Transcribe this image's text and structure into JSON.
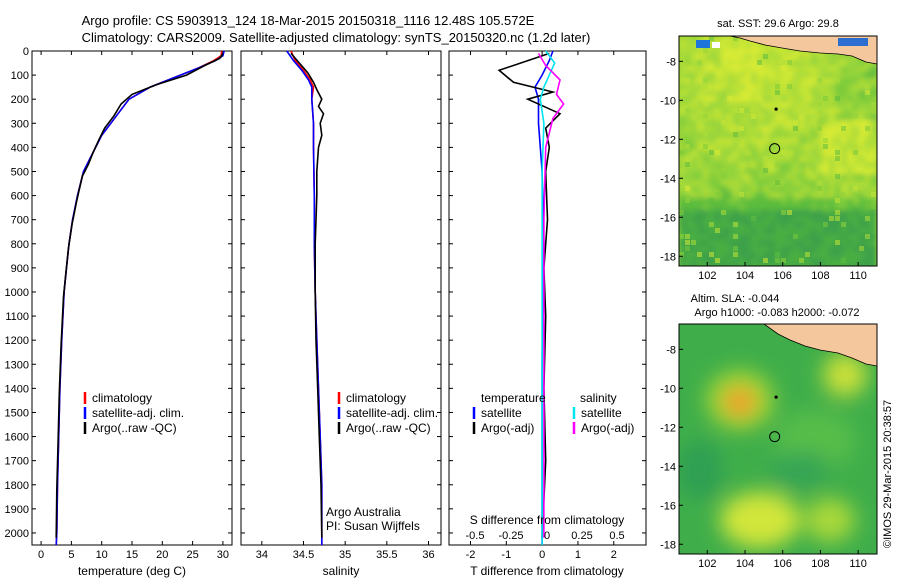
{
  "header": {
    "line1": "Argo profile: CS 5903913_124 18-Mar-2015 20150318_1116 12.48S 105.572E",
    "line2": "Climatology: CARS2009. Satellite-adjusted climatology: synTS_20150320.nc (1.2d later)"
  },
  "watermark": "©IMOS 29-Mar-2015 20:38:57",
  "colors": {
    "climatology": "#ff0000",
    "satellite_clim": "#0000ff",
    "argo": "#000000",
    "salinity_satellite": "#00e5ee",
    "salinity_argo": "#ff00ff",
    "land": "#f5c79c",
    "coast": "#000000"
  },
  "chart_data": [
    {
      "type": "line",
      "id": "temperature",
      "xlabel": "temperature (deg C)",
      "ylabel": "",
      "xlim": [
        -1.5,
        31.5
      ],
      "ylim": [
        2050,
        0
      ],
      "xticks": [
        0,
        5,
        10,
        15,
        20,
        25,
        30
      ],
      "xticklabels": [
        "0",
        "5",
        "10",
        "15",
        "20",
        "25",
        "30"
      ],
      "yticks": [
        0,
        100,
        200,
        300,
        400,
        500,
        600,
        700,
        800,
        900,
        1000,
        1100,
        1200,
        1300,
        1400,
        1500,
        1600,
        1700,
        1800,
        1900,
        2000
      ],
      "yticklabels": [
        "0",
        "100",
        "200",
        "300",
        "400",
        "500",
        "600",
        "700",
        "800",
        "900",
        "1000",
        "1100",
        "1200",
        "1300",
        "1400",
        "1500",
        "1600",
        "1700",
        "1800",
        "1900",
        "2000"
      ],
      "legend": [
        "climatology",
        "satellite-adj. clim.",
        "Argo(..raw -QC)"
      ],
      "series": [
        {
          "name": "climatology",
          "color": "#ff0000",
          "x": [
            29.8,
            29.7,
            28.5,
            26,
            22,
            18,
            14.5,
            13,
            11.5,
            10,
            9,
            8,
            7,
            6,
            5.2,
            4.6,
            4.2,
            3.8,
            3.4,
            3.1,
            2.9,
            2.7,
            2.6,
            2.5
          ],
          "y": [
            0,
            20,
            40,
            70,
            110,
            150,
            200,
            250,
            300,
            350,
            400,
            450,
            500,
            600,
            700,
            800,
            900,
            1000,
            1200,
            1400,
            1600,
            1800,
            2000,
            2050
          ]
        },
        {
          "name": "satellite-adj. clim.",
          "color": "#0000ff",
          "x": [
            30.2,
            30,
            28.8,
            26,
            22,
            18,
            14.5,
            13,
            11.5,
            10,
            9,
            8,
            7,
            6,
            5.2,
            4.6,
            4.2,
            3.8,
            3.4,
            3.1,
            2.9,
            2.7,
            2.6,
            2.5
          ],
          "y": [
            0,
            20,
            40,
            70,
            110,
            150,
            200,
            250,
            300,
            350,
            400,
            450,
            500,
            600,
            700,
            800,
            900,
            1000,
            1200,
            1400,
            1600,
            1800,
            2000,
            2050
          ]
        },
        {
          "name": "Argo(..raw -QC)",
          "color": "#000000",
          "x": [
            30,
            29.5,
            27,
            24,
            19,
            15,
            13.2,
            12,
            10.5,
            9.5,
            8.6,
            7.8,
            6.8,
            5.9,
            5.1,
            4.5,
            4.1,
            3.7,
            3.3,
            3,
            2.8,
            2.6,
            2.5
          ],
          "y": [
            10,
            30,
            60,
            100,
            140,
            180,
            220,
            270,
            320,
            370,
            420,
            470,
            520,
            620,
            720,
            820,
            920,
            1020,
            1220,
            1420,
            1620,
            1820,
            2020
          ]
        }
      ]
    },
    {
      "type": "line",
      "id": "salinity",
      "xlabel": "salinity",
      "ylabel": "",
      "xlim": [
        33.75,
        36.15
      ],
      "ylim": [
        2050,
        0
      ],
      "xticks": [
        34,
        34.5,
        35,
        35.5,
        36
      ],
      "xticklabels": [
        "34",
        "34.5",
        "35",
        "35.5",
        "36"
      ],
      "legend": [
        "climatology",
        "satellite-adj. clim.",
        "Argo(..raw -QC)"
      ],
      "annotations": [
        "Argo Australia",
        "PI: Susan Wijffels"
      ],
      "series": [
        {
          "name": "climatology",
          "color": "#ff0000",
          "x": [
            34.35,
            34.4,
            34.5,
            34.58,
            34.62,
            34.6,
            34.62,
            34.62,
            34.63,
            34.63,
            34.64,
            34.66,
            34.68,
            34.7,
            34.72,
            34.72
          ],
          "y": [
            0,
            40,
            80,
            120,
            150,
            200,
            300,
            400,
            600,
            800,
            1000,
            1200,
            1400,
            1600,
            1800,
            2050
          ]
        },
        {
          "name": "satellite-adj. clim.",
          "color": "#0000ff",
          "x": [
            34.3,
            34.38,
            34.48,
            34.56,
            34.6,
            34.6,
            34.62,
            34.62,
            34.63,
            34.63,
            34.64,
            34.66,
            34.68,
            34.7,
            34.72,
            34.72
          ],
          "y": [
            0,
            40,
            80,
            120,
            150,
            200,
            300,
            400,
            600,
            800,
            1000,
            1200,
            1400,
            1600,
            1800,
            2050
          ]
        },
        {
          "name": "Argo(..raw -QC)",
          "color": "#000000",
          "x": [
            34.35,
            34.45,
            34.55,
            34.62,
            34.66,
            34.72,
            34.68,
            34.74,
            34.7,
            34.72,
            34.68,
            34.66,
            34.66,
            34.64,
            34.64,
            34.65,
            34.67,
            34.69,
            34.71,
            34.72
          ],
          "y": [
            10,
            50,
            90,
            130,
            160,
            200,
            230,
            260,
            300,
            350,
            400,
            500,
            600,
            800,
            1000,
            1200,
            1400,
            1600,
            1800,
            2020
          ]
        }
      ]
    },
    {
      "type": "line",
      "id": "difference",
      "xlabel": "T difference from climatology",
      "ylabel": "",
      "title_bottom": "S difference from climatology",
      "xlim": [
        -2.6,
        2.9
      ],
      "ylim": [
        2050,
        0
      ],
      "xticks": [
        -2,
        -1,
        0,
        1,
        2
      ],
      "xticklabels": [
        "-2",
        "-1",
        "0",
        "1",
        "2"
      ],
      "sticks_label": [
        "-0.5",
        "-0.25",
        "0",
        "0.25",
        "0.5"
      ],
      "legend_left_title": "temperature",
      "legend_right_title": "salinity",
      "legend_left": [
        "satellite",
        "Argo(-adj)"
      ],
      "legend_right": [
        "satellite",
        "Argo(-adj)"
      ],
      "series": [
        {
          "name": "temperature satellite",
          "color": "#0000ff",
          "x": [
            0.3,
            0.2,
            0,
            -0.2,
            -0.1,
            -0.1,
            0,
            0.05,
            0.02,
            0,
            0,
            0,
            0
          ],
          "y": [
            0,
            40,
            100,
            150,
            200,
            300,
            500,
            800,
            1000,
            1300,
            1600,
            1900,
            2050
          ]
        },
        {
          "name": "temperature Argo(-adj)",
          "color": "#000000",
          "x": [
            0.2,
            -1.2,
            -0.8,
            0.3,
            -0.4,
            0.5,
            0.1,
            0.2,
            0.1,
            0.15,
            0.05,
            0.1,
            0.05,
            0.1,
            0
          ],
          "y": [
            10,
            80,
            130,
            170,
            200,
            260,
            320,
            400,
            500,
            700,
            900,
            1100,
            1400,
            1700,
            2020
          ]
        },
        {
          "name": "salinity satellite",
          "color": "#00e5ee",
          "x": [
            0.1,
            0.35,
            0.2,
            0.05,
            -0.05,
            0.05,
            0,
            0,
            0,
            0
          ],
          "y": [
            0,
            50,
            100,
            150,
            200,
            300,
            500,
            800,
            1300,
            2050
          ]
        },
        {
          "name": "salinity Argo(-adj)",
          "color": "#ff00ff",
          "x": [
            -0.1,
            0.1,
            0.5,
            0.4,
            0.6,
            0.3,
            0.1,
            0.05,
            0.05,
            0.05
          ],
          "y": [
            10,
            60,
            120,
            180,
            220,
            280,
            400,
            700,
            1300,
            2020
          ]
        }
      ]
    },
    {
      "type": "heatmap",
      "id": "sst_map",
      "title": "sat. SST: 29.6 Argo: 29.8",
      "xlim": [
        100.5,
        111.0
      ],
      "ylim": [
        -18.5,
        -6.7
      ],
      "xticks": [
        102,
        104,
        106,
        108,
        110
      ],
      "xticklabels": [
        "102",
        "104",
        "106",
        "108",
        "110"
      ],
      "yticks": [
        -8,
        -10,
        -12,
        -14,
        -16,
        -18
      ],
      "yticklabels": [
        "-8",
        "-10",
        "-12",
        "-14",
        "-16",
        "-18"
      ],
      "profile_location": [
        105.572,
        -12.48
      ],
      "island": [
        105.65,
        -10.45
      ]
    },
    {
      "type": "heatmap",
      "id": "sla_map",
      "title": "Altim. SLA: -0.044",
      "subtitle": "Argo h1000: -0.083 h2000: -0.072",
      "xlim": [
        100.5,
        111.0
      ],
      "ylim": [
        -18.5,
        -6.7
      ],
      "xticks": [
        102,
        104,
        106,
        108,
        110
      ],
      "xticklabels": [
        "102",
        "104",
        "106",
        "108",
        "110"
      ],
      "yticks": [
        -8,
        -10,
        -12,
        -14,
        -16,
        -18
      ],
      "yticklabels": [
        "-8",
        "-10",
        "-12",
        "-14",
        "-16",
        "-18"
      ],
      "profile_location": [
        105.572,
        -12.48
      ],
      "island": [
        105.65,
        -10.45
      ]
    }
  ]
}
